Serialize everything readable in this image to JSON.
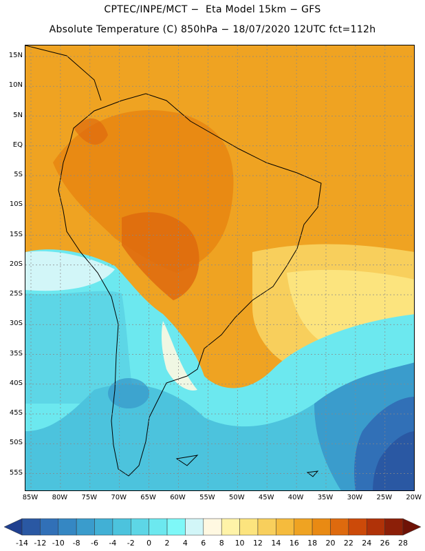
{
  "header": {
    "line1": "CPTEC/INPE/MCT −  Eta Model 15km − GFS",
    "line2": "Absolute Temperature (C) 850hPa − 18/07/2020 12UTC fct=112h"
  },
  "map": {
    "lat_ticks": [
      {
        "value": 15,
        "label": "15N"
      },
      {
        "value": 10,
        "label": "10N"
      },
      {
        "value": 5,
        "label": "5N"
      },
      {
        "value": 0,
        "label": "EQ"
      },
      {
        "value": -5,
        "label": "5S"
      },
      {
        "value": -10,
        "label": "10S"
      },
      {
        "value": -15,
        "label": "15S"
      },
      {
        "value": -20,
        "label": "20S"
      },
      {
        "value": -25,
        "label": "25S"
      },
      {
        "value": -30,
        "label": "30S"
      },
      {
        "value": -35,
        "label": "35S"
      },
      {
        "value": -40,
        "label": "40S"
      },
      {
        "value": -45,
        "label": "45S"
      },
      {
        "value": -50,
        "label": "50S"
      },
      {
        "value": -55,
        "label": "55S"
      }
    ],
    "lon_ticks": [
      {
        "value": -85,
        "label": "85W"
      },
      {
        "value": -80,
        "label": "80W"
      },
      {
        "value": -75,
        "label": "75W"
      },
      {
        "value": -70,
        "label": "70W"
      },
      {
        "value": -65,
        "label": "65W"
      },
      {
        "value": -60,
        "label": "60W"
      },
      {
        "value": -55,
        "label": "55W"
      },
      {
        "value": -50,
        "label": "50W"
      },
      {
        "value": -45,
        "label": "45W"
      },
      {
        "value": -40,
        "label": "40W"
      },
      {
        "value": -35,
        "label": "35W"
      },
      {
        "value": -30,
        "label": "30W"
      },
      {
        "value": -25,
        "label": "25W"
      },
      {
        "value": -20,
        "label": "20W"
      }
    ]
  },
  "colorbar": {
    "labels": [
      "-14",
      "-12",
      "-10",
      "-8",
      "-6",
      "-4",
      "-2",
      "0",
      "2",
      "4",
      "6",
      "8",
      "10",
      "12",
      "14",
      "16",
      "18",
      "20",
      "22",
      "24",
      "26",
      "28"
    ],
    "colors": [
      "#1f3f8f",
      "#2a58a3",
      "#3170b7",
      "#3587c3",
      "#3a9ccc",
      "#41b0d5",
      "#4cc3dd",
      "#5dd6e6",
      "#6ce8ef",
      "#7ef8f8",
      "#d2f6f8",
      "#fff8e1",
      "#fff3a8",
      "#fce47e",
      "#f8cf5c",
      "#f5bb3d",
      "#efa322",
      "#e98a13",
      "#de6a0e",
      "#cc4a09",
      "#b03208",
      "#8c1f08",
      "#6e1206"
    ]
  }
}
